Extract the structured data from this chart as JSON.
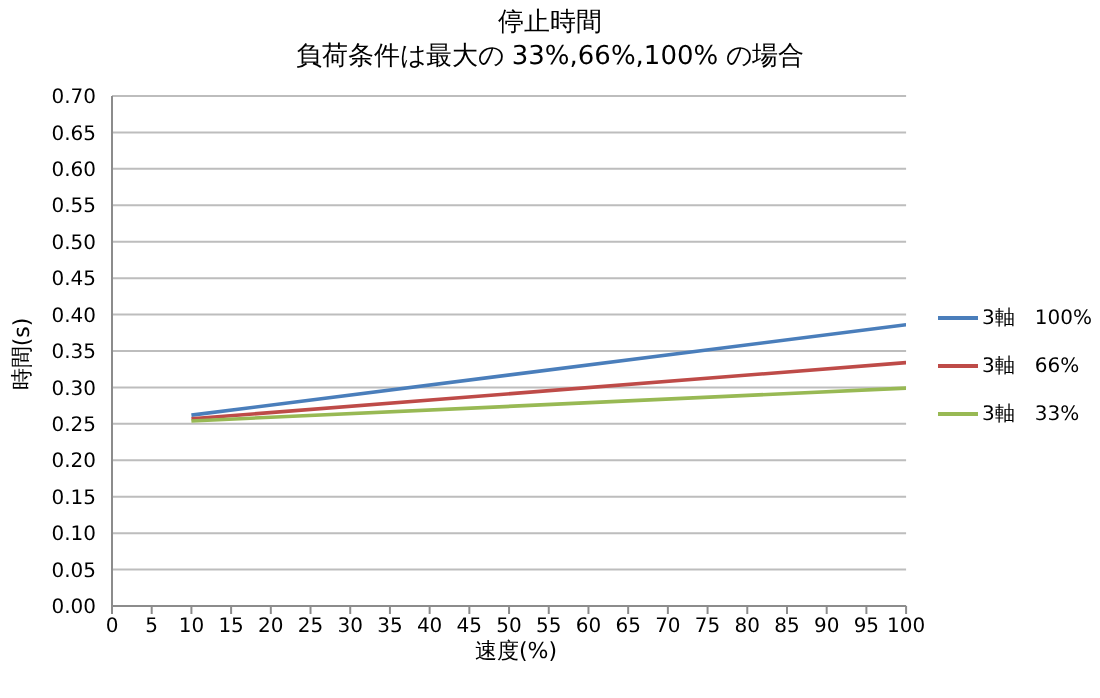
{
  "chart_data": {
    "type": "line",
    "title": "停止時間",
    "subtitle": "負荷条件は最大の 33%,66%,100% の場合",
    "xlabel": "速度(%)",
    "ylabel": "時間(s)",
    "x": [
      10,
      100
    ],
    "series": [
      {
        "name": "3軸　100%",
        "color": "#4a7ebb",
        "values": [
          0.262,
          0.386
        ]
      },
      {
        "name": "3軸　66%",
        "color": "#be4b48",
        "values": [
          0.257,
          0.334
        ]
      },
      {
        "name": "3軸　33%",
        "color": "#98b954",
        "values": [
          0.254,
          0.299
        ]
      }
    ],
    "xlim": [
      0,
      100
    ],
    "xticks": [
      0,
      5,
      10,
      15,
      20,
      25,
      30,
      35,
      40,
      45,
      50,
      55,
      60,
      65,
      70,
      75,
      80,
      85,
      90,
      95,
      100
    ],
    "ylim": [
      0,
      0.7
    ],
    "yticks": [
      {
        "value": 0,
        "label": "0.00"
      },
      {
        "value": 0.05,
        "label": "0.05"
      },
      {
        "value": 0.1,
        "label": "0.10"
      },
      {
        "value": 0.15,
        "label": "0.15"
      },
      {
        "value": 0.2,
        "label": "0.20"
      },
      {
        "value": 0.25,
        "label": "0.25"
      },
      {
        "value": 0.3,
        "label": "0.30"
      },
      {
        "value": 0.35,
        "label": "0.35"
      },
      {
        "value": 0.4,
        "label": "0.40"
      },
      {
        "value": 0.45,
        "label": "0.45"
      },
      {
        "value": 0.5,
        "label": "0.50"
      },
      {
        "value": 0.55,
        "label": "0.55"
      },
      {
        "value": 0.6,
        "label": "0.60"
      },
      {
        "value": 0.65,
        "label": "0.65"
      },
      {
        "value": 0.7,
        "label": "0.70"
      }
    ],
    "grid": "y",
    "legend": "right",
    "marker": "none",
    "line_style": "solid"
  }
}
